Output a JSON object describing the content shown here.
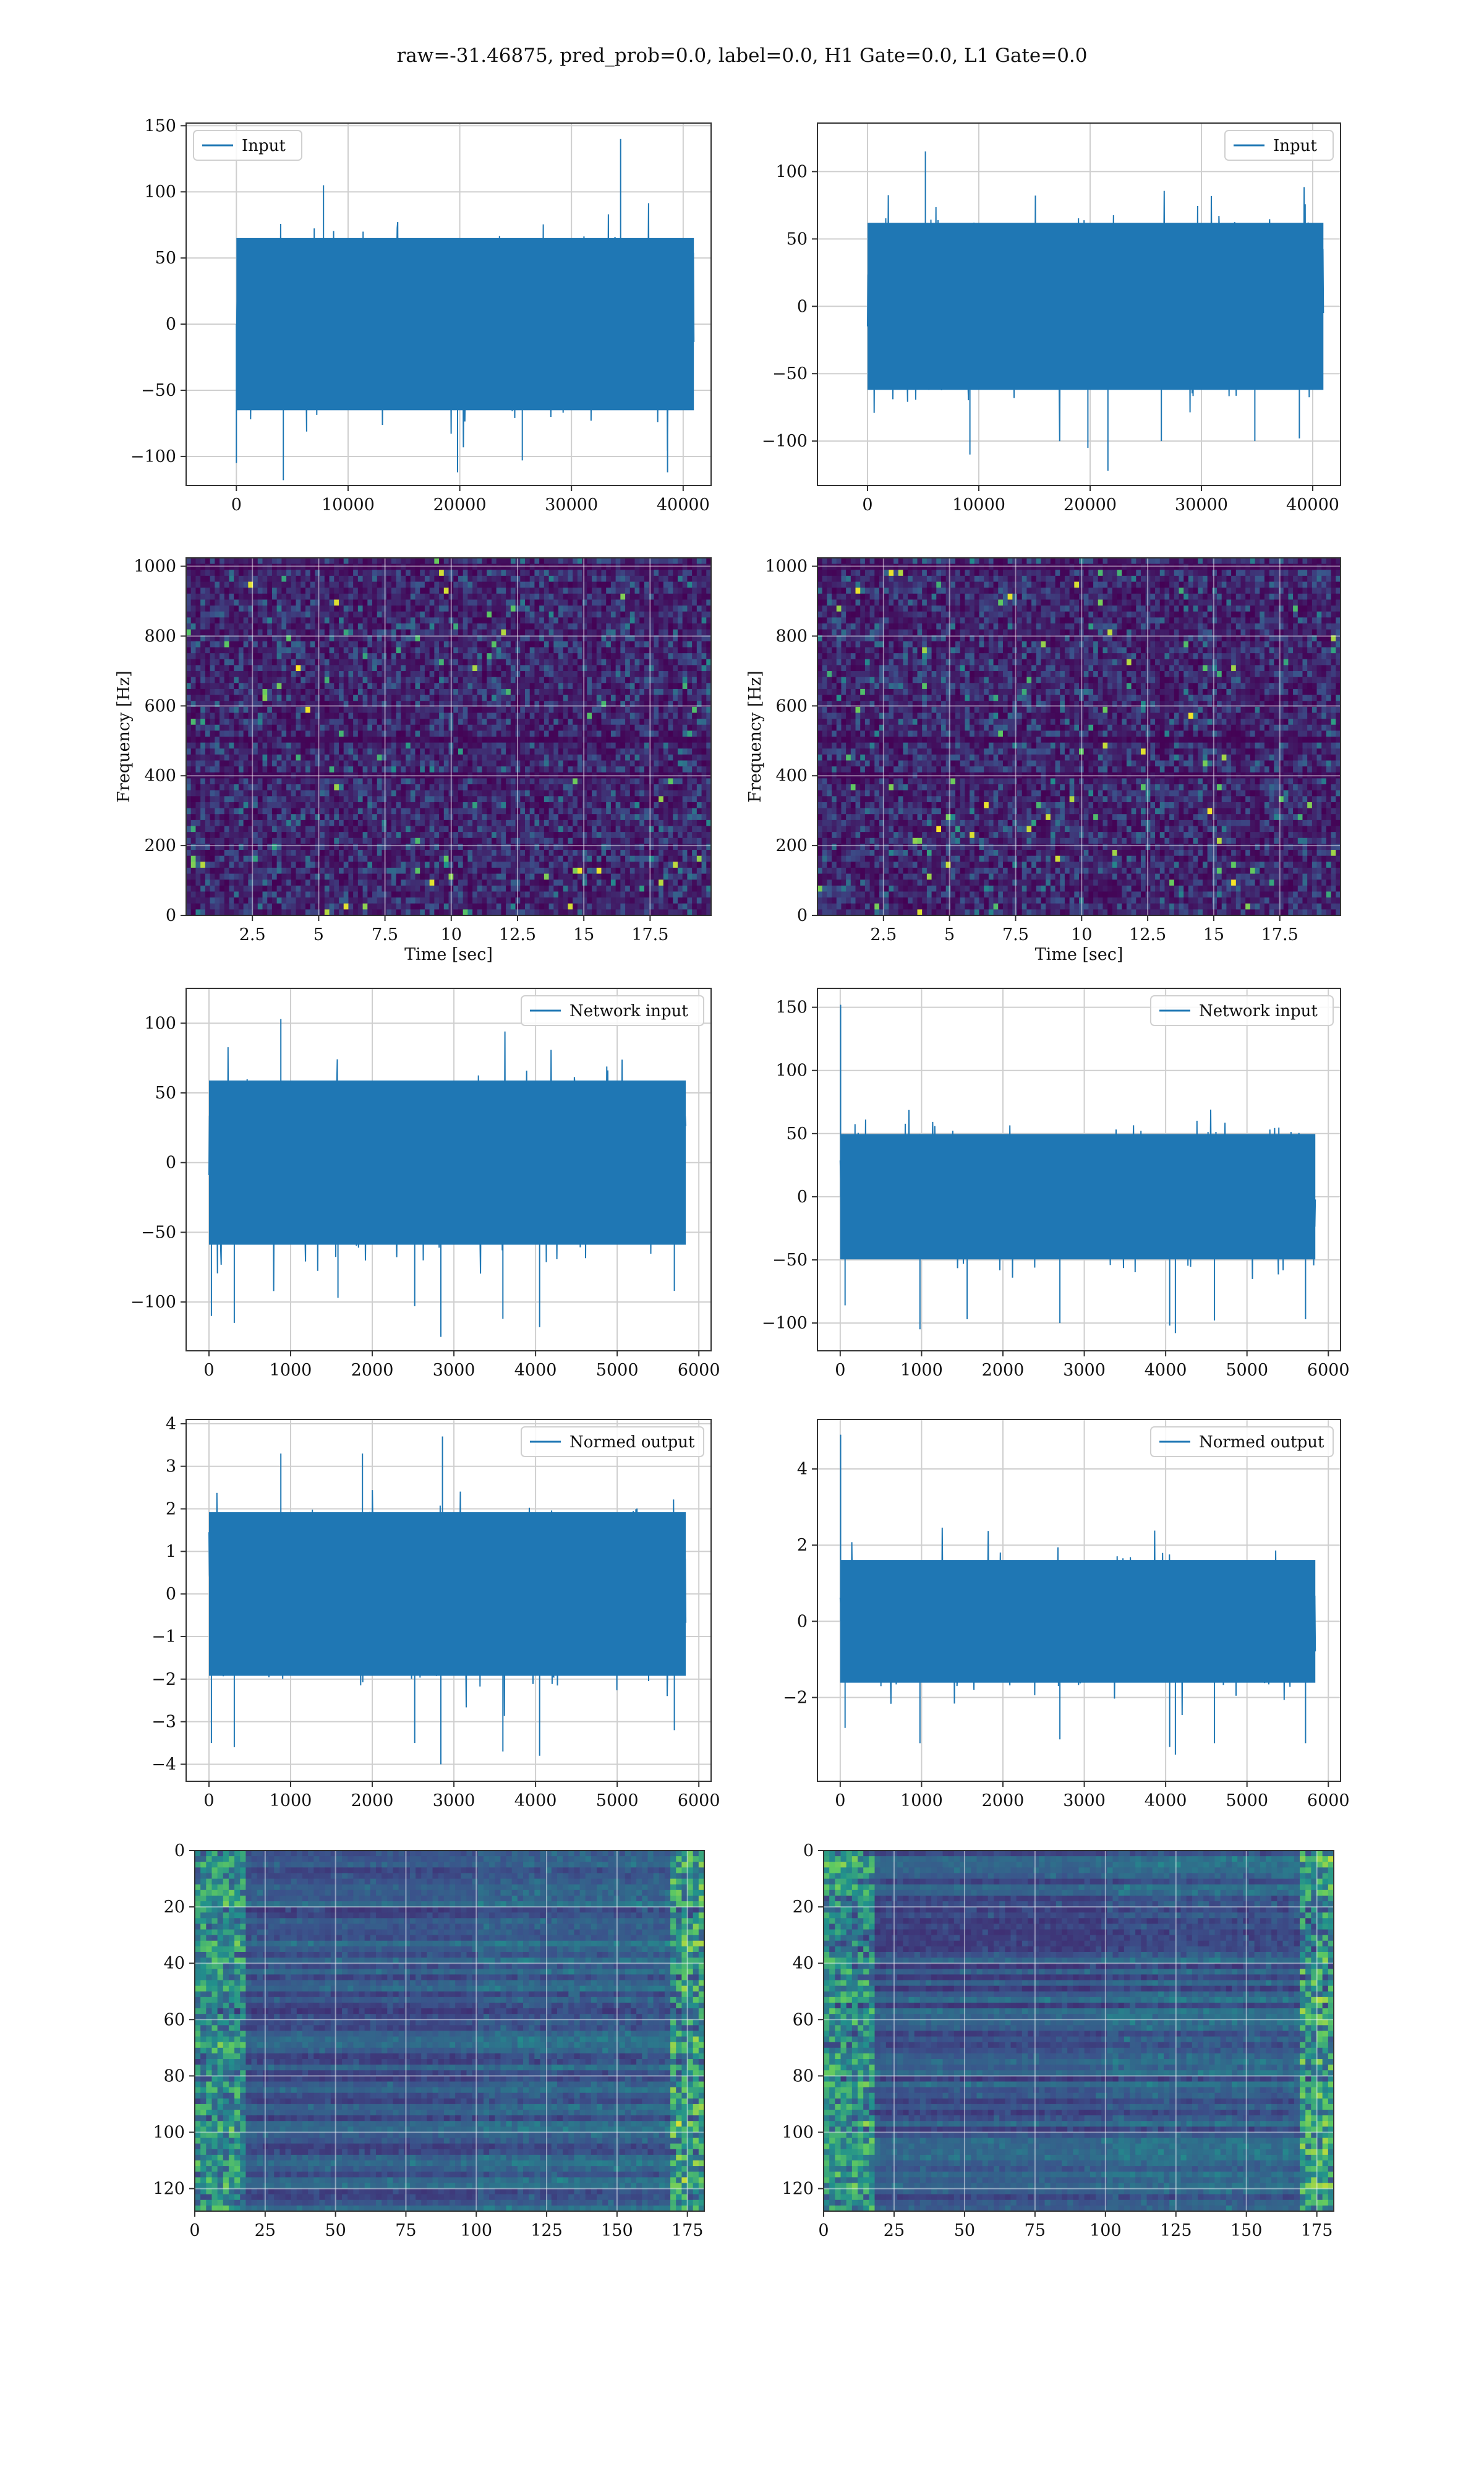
{
  "figure": {
    "suptitle": "raw=-31.46875, pred_prob=0.0, label=0.0, H1 Gate=0.0, L1 Gate=0.0"
  },
  "colors": {
    "line": "#1f77b4",
    "grid": "#cfcfcf",
    "spine": "#333333",
    "viridis": [
      "#440154",
      "#3b528b",
      "#21918c",
      "#5ec962",
      "#fde725"
    ]
  },
  "chart_data": [
    {
      "id": "p00",
      "type": "line",
      "series": [
        {
          "name": "Input",
          "kind": "noise",
          "n": 40960,
          "center": 0,
          "spread": [
            -105,
            105
          ],
          "extremes": [
            [
              2,
              -105
            ],
            [
              4200,
              -118
            ],
            [
              7800,
              105
            ],
            [
              19800,
              -112
            ],
            [
              25600,
              -103
            ],
            [
              34400,
              140
            ],
            [
              38600,
              -112
            ]
          ]
        }
      ],
      "xlim": [
        -4500,
        42500
      ],
      "ylim": [
        -122,
        152
      ],
      "xticks": [
        0,
        10000,
        20000,
        30000,
        40000
      ],
      "yticks": [
        -100,
        -50,
        0,
        50,
        100,
        150
      ],
      "legend": "upper left",
      "grid": true
    },
    {
      "id": "p01",
      "type": "line",
      "series": [
        {
          "name": "Input",
          "kind": "noise",
          "n": 40960,
          "center": 0,
          "spread": [
            -100,
            100
          ],
          "extremes": [
            [
              5200,
              115
            ],
            [
              9200,
              -110
            ],
            [
              19800,
              -105
            ],
            [
              21600,
              -122
            ],
            [
              26400,
              -100
            ],
            [
              34800,
              -100
            ],
            [
              38800,
              -98
            ]
          ]
        }
      ],
      "xlim": [
        -4500,
        42500
      ],
      "ylim": [
        -133,
        136
      ],
      "xticks": [
        0,
        10000,
        20000,
        30000,
        40000
      ],
      "yticks": [
        -100,
        -50,
        0,
        50,
        100
      ],
      "legend": "upper right",
      "grid": true
    },
    {
      "id": "p10",
      "type": "heatmap",
      "kind": "spectrogram",
      "xlim": [
        0,
        19.8
      ],
      "ylim": [
        0,
        1024
      ],
      "xticks": [
        2.5,
        5.0,
        7.5,
        10.0,
        12.5,
        15.0,
        17.5
      ],
      "yticks": [
        0,
        200,
        400,
        600,
        800,
        1000
      ],
      "xlabel": "Time [sec]",
      "ylabel": "Frequency [Hz]",
      "dark_bands_hz": [
        400,
        500,
        1000
      ],
      "grid": true
    },
    {
      "id": "p11",
      "type": "heatmap",
      "kind": "spectrogram",
      "xlim": [
        0,
        19.8
      ],
      "ylim": [
        0,
        1024
      ],
      "xticks": [
        2.5,
        5.0,
        7.5,
        10.0,
        12.5,
        15.0,
        17.5
      ],
      "yticks": [
        0,
        200,
        400,
        600,
        800,
        1000
      ],
      "xlabel": "Time [sec]",
      "ylabel": "Frequency [Hz]",
      "dark_bands_hz": [
        400,
        500,
        1000
      ],
      "grid": true
    },
    {
      "id": "p20",
      "type": "line",
      "series": [
        {
          "name": "Network input",
          "kind": "noise",
          "n": 5840,
          "center": 0,
          "spread": [
            -95,
            95
          ],
          "extremes": [
            [
              30,
              -110
            ],
            [
              310,
              -115
            ],
            [
              880,
              103
            ],
            [
              1580,
              -97
            ],
            [
              2520,
              -103
            ],
            [
              2840,
              -125
            ],
            [
              3600,
              -112
            ],
            [
              4050,
              -118
            ],
            [
              5700,
              -92
            ]
          ]
        }
      ],
      "xlim": [
        -280,
        6150
      ],
      "ylim": [
        -135,
        125
      ],
      "xticks": [
        0,
        1000,
        2000,
        3000,
        4000,
        5000,
        6000
      ],
      "yticks": [
        -100,
        -50,
        0,
        50,
        100
      ],
      "legend": "upper right",
      "grid": true
    },
    {
      "id": "p21",
      "type": "line",
      "series": [
        {
          "name": "Network input",
          "kind": "noise",
          "n": 5840,
          "center": 0,
          "spread": [
            -80,
            80
          ],
          "extremes": [
            [
              5,
              152
            ],
            [
              60,
              -86
            ],
            [
              980,
              -105
            ],
            [
              1560,
              -97
            ],
            [
              2700,
              -100
            ],
            [
              4050,
              -102
            ],
            [
              4120,
              -108
            ],
            [
              4600,
              -98
            ],
            [
              5720,
              -97
            ]
          ]
        }
      ],
      "xlim": [
        -280,
        6150
      ],
      "ylim": [
        -122,
        165
      ],
      "xticks": [
        0,
        1000,
        2000,
        3000,
        4000,
        5000,
        6000
      ],
      "yticks": [
        -100,
        -50,
        0,
        50,
        100,
        150
      ],
      "legend": "upper right",
      "grid": true
    },
    {
      "id": "p30",
      "type": "line",
      "series": [
        {
          "name": "Normed output",
          "kind": "noise",
          "n": 5840,
          "center": 0,
          "spread": [
            -3.1,
            3.1
          ],
          "extremes": [
            [
              30,
              -3.5
            ],
            [
              310,
              -3.6
            ],
            [
              880,
              3.3
            ],
            [
              1880,
              3.3
            ],
            [
              2520,
              -3.5
            ],
            [
              2840,
              -4.0
            ],
            [
              2860,
              3.7
            ],
            [
              3600,
              -3.7
            ],
            [
              4050,
              -3.8
            ],
            [
              5700,
              -3.2
            ]
          ]
        }
      ],
      "xlim": [
        -280,
        6150
      ],
      "ylim": [
        -4.4,
        4.1
      ],
      "xticks": [
        0,
        1000,
        2000,
        3000,
        4000,
        5000,
        6000
      ],
      "yticks": [
        -4,
        -3,
        -2,
        -1,
        0,
        1,
        2,
        3,
        4
      ],
      "legend": "upper right",
      "grid": true
    },
    {
      "id": "p31",
      "type": "line",
      "series": [
        {
          "name": "Normed output",
          "kind": "noise",
          "n": 5840,
          "center": 0,
          "spread": [
            -2.6,
            2.6
          ],
          "extremes": [
            [
              5,
              4.9
            ],
            [
              60,
              -2.8
            ],
            [
              980,
              -3.2
            ],
            [
              2700,
              -3.1
            ],
            [
              4050,
              -3.3
            ],
            [
              4120,
              -3.5
            ],
            [
              4600,
              -3.2
            ],
            [
              5720,
              -3.2
            ]
          ]
        }
      ],
      "xlim": [
        -280,
        6150
      ],
      "ylim": [
        -4.2,
        5.3
      ],
      "xticks": [
        0,
        1000,
        2000,
        3000,
        4000,
        5000,
        6000
      ],
      "yticks": [
        -2,
        0,
        2,
        4
      ],
      "legend": "upper right",
      "grid": true
    },
    {
      "id": "p40",
      "type": "heatmap",
      "kind": "feature_map",
      "rows": 128,
      "cols": 181,
      "xlim": [
        0,
        181
      ],
      "ylim": [
        0,
        128
      ],
      "xticks": [
        0,
        25,
        50,
        75,
        100,
        125,
        150,
        175
      ],
      "yticks": [
        0,
        20,
        40,
        60,
        80,
        100,
        120
      ],
      "grid": true
    },
    {
      "id": "p41",
      "type": "heatmap",
      "kind": "feature_map",
      "rows": 128,
      "cols": 181,
      "xlim": [
        0,
        181
      ],
      "ylim": [
        0,
        128
      ],
      "xticks": [
        0,
        25,
        50,
        75,
        100,
        125,
        150,
        175
      ],
      "yticks": [
        0,
        20,
        40,
        60,
        80,
        100,
        120
      ],
      "grid": true
    }
  ]
}
